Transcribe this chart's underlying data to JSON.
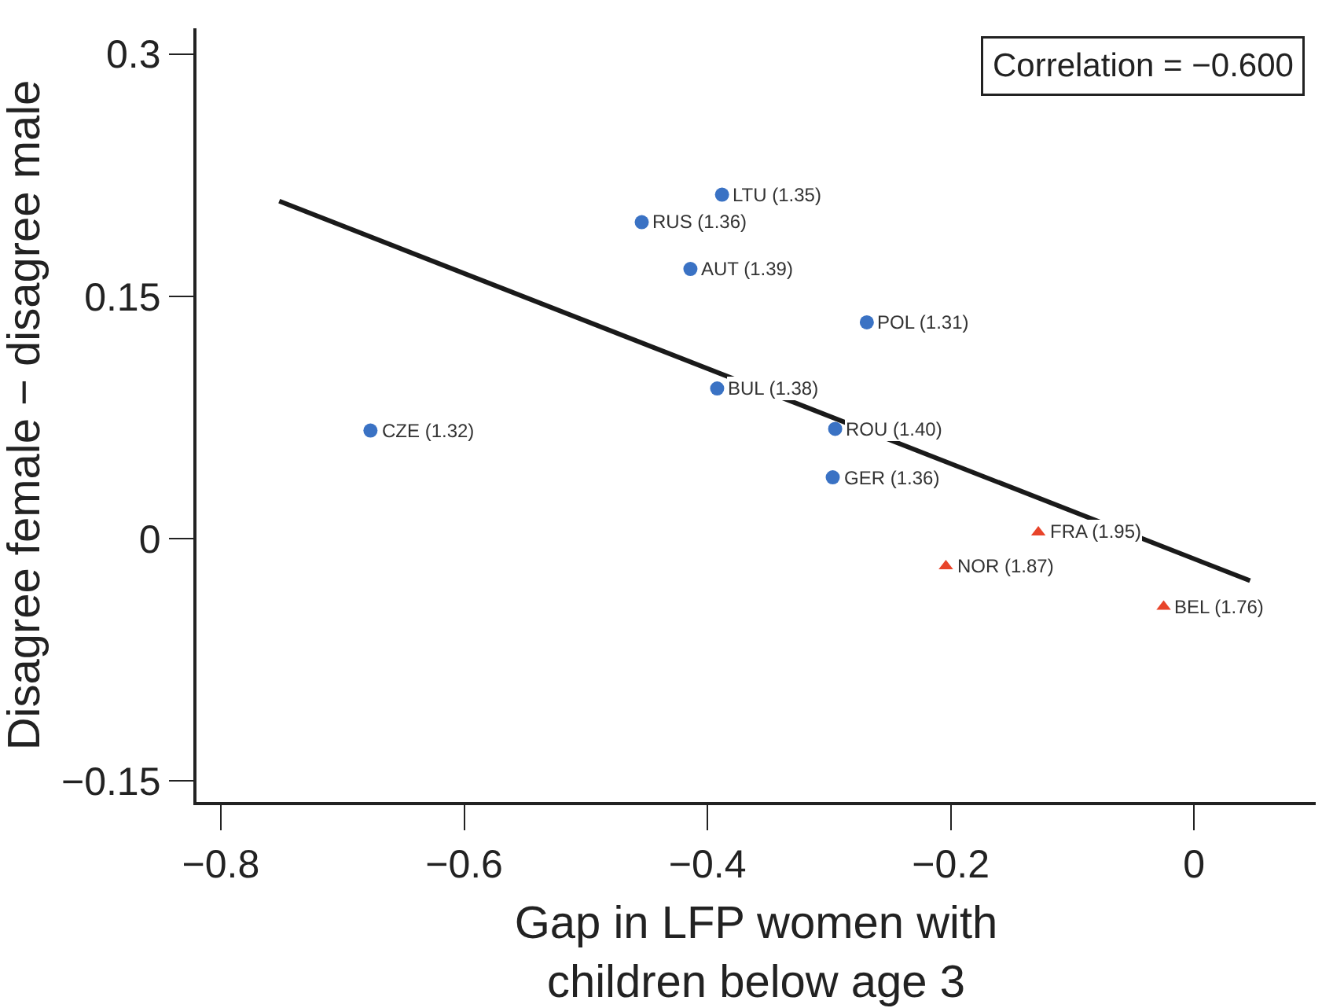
{
  "chart_data": {
    "type": "scatter",
    "xlabel": "Gap in LFP women with\nchildren below age 3",
    "ylabel": "Disagree female − disagree male",
    "xlim": [
      -0.82,
      0.1
    ],
    "ylim": [
      -0.163,
      0.316
    ],
    "xticks": [
      {
        "value": -0.8,
        "label": "−0.8"
      },
      {
        "value": -0.6,
        "label": "−0.6"
      },
      {
        "value": -0.4,
        "label": "−0.4"
      },
      {
        "value": -0.2,
        "label": "−0.2"
      },
      0
    ],
    "yticks": [
      {
        "value": -0.15,
        "label": "−0.15"
      },
      0,
      0.15,
      0.3
    ],
    "grid": false,
    "legend": false,
    "annotations": [
      "Correlation = −0.600",
      {
        "text": "LTU (1.35)",
        "x": -0.388,
        "y": 0.213
      },
      {
        "text": "RUS (1.36)",
        "x": -0.454,
        "y": 0.196
      },
      {
        "text": "AUT (1.39)",
        "x": -0.414,
        "y": 0.167
      },
      {
        "text": "POL (1.31)",
        "x": -0.269,
        "y": 0.134
      },
      {
        "text": "BUL (1.38)",
        "x": -0.392,
        "y": 0.093
      },
      {
        "text": "ROU (1.40)",
        "x": -0.295,
        "y": 0.068
      },
      {
        "text": "CZE (1.32)",
        "x": -0.677,
        "y": 0.067
      },
      {
        "text": "GER (1.36)",
        "x": -0.297,
        "y": 0.038
      },
      {
        "text": "FRA (1.95)",
        "x": -0.128,
        "y": 0.004
      },
      {
        "text": "NOR (1.87)",
        "x": -0.204,
        "y": -0.017
      },
      {
        "text": "BEL (1.76)",
        "x": -0.025,
        "y": -0.042
      }
    ],
    "series": [
      {
        "type": "line",
        "marker": "none",
        "color": "#1a1a1a",
        "x": [
          -0.752,
          0.046
        ],
        "values": [
          0.209,
          -0.026
        ]
      },
      {
        "marker": "circle",
        "color": "#3a72c4",
        "x": [
          -0.388,
          -0.454,
          -0.414,
          -0.269,
          -0.392,
          -0.295,
          -0.677,
          -0.297
        ],
        "values": [
          0.213,
          0.196,
          0.167,
          0.134,
          0.093,
          0.068,
          0.067,
          0.038
        ]
      },
      {
        "marker": "triangle",
        "color": "#e8442a",
        "x": [
          -0.128,
          -0.204,
          -0.025
        ],
        "values": [
          0.004,
          -0.017,
          -0.042
        ]
      }
    ]
  }
}
